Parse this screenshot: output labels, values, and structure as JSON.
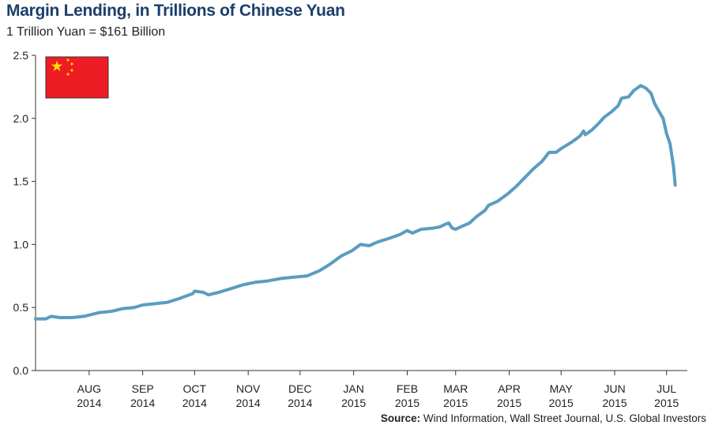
{
  "header": {
    "title": "Margin Lending, in Trillions of Chinese Yuan",
    "subtitle": "1 Trillion Yuan = $161 Billion"
  },
  "footer": {
    "source_label": "Source:",
    "source_text": "Wind Information, Wall Street Journal, U.S. Global Investors"
  },
  "colors": {
    "line": "#5b9cc0",
    "axis": "#333333",
    "flag_red": "#ee1c25",
    "flag_star": "#ffde00"
  },
  "icons": {
    "flag": "china-flag-icon"
  },
  "chart_data": {
    "type": "line",
    "title": "Margin Lending, in Trillions of Chinese Yuan",
    "xlabel": "",
    "ylabel": "",
    "ylim": [
      0,
      2.5
    ],
    "yticks": [
      "0.0",
      "0.5",
      "1.0",
      "1.5",
      "2.0",
      "2.5"
    ],
    "xlim": [
      "2014-07-01",
      "2015-07-13"
    ],
    "xticks": [
      {
        "date": "2014-08-01",
        "month": "AUG",
        "year": "2014"
      },
      {
        "date": "2014-09-01",
        "month": "SEP",
        "year": "2014"
      },
      {
        "date": "2014-10-01",
        "month": "OCT",
        "year": "2014"
      },
      {
        "date": "2014-11-01",
        "month": "NOV",
        "year": "2014"
      },
      {
        "date": "2014-12-01",
        "month": "DEC",
        "year": "2014"
      },
      {
        "date": "2015-01-01",
        "month": "JAN",
        "year": "2015"
      },
      {
        "date": "2015-02-01",
        "month": "FEB",
        "year": "2015"
      },
      {
        "date": "2015-03-01",
        "month": "MAR",
        "year": "2015"
      },
      {
        "date": "2015-04-01",
        "month": "APR",
        "year": "2015"
      },
      {
        "date": "2015-05-01",
        "month": "MAY",
        "year": "2015"
      },
      {
        "date": "2015-06-01",
        "month": "JUN",
        "year": "2015"
      },
      {
        "date": "2015-07-01",
        "month": "JUL",
        "year": "2015"
      }
    ],
    "grid": false,
    "series": [
      {
        "values": [
          [
            "2014-07-01",
            0.41
          ],
          [
            "2014-07-07",
            0.41
          ],
          [
            "2014-07-10",
            0.43
          ],
          [
            "2014-07-15",
            0.42
          ],
          [
            "2014-07-22",
            0.42
          ],
          [
            "2014-07-29",
            0.43
          ],
          [
            "2014-08-01",
            0.44
          ],
          [
            "2014-08-07",
            0.46
          ],
          [
            "2014-08-14",
            0.47
          ],
          [
            "2014-08-20",
            0.49
          ],
          [
            "2014-08-27",
            0.5
          ],
          [
            "2014-09-01",
            0.52
          ],
          [
            "2014-09-08",
            0.53
          ],
          [
            "2014-09-15",
            0.54
          ],
          [
            "2014-09-22",
            0.57
          ],
          [
            "2014-09-26",
            0.59
          ],
          [
            "2014-09-30",
            0.61
          ],
          [
            "2014-10-01",
            0.63
          ],
          [
            "2014-10-06",
            0.62
          ],
          [
            "2014-10-09",
            0.6
          ],
          [
            "2014-10-15",
            0.62
          ],
          [
            "2014-10-22",
            0.65
          ],
          [
            "2014-10-29",
            0.68
          ],
          [
            "2014-11-05",
            0.7
          ],
          [
            "2014-11-12",
            0.71
          ],
          [
            "2014-11-20",
            0.73
          ],
          [
            "2014-11-27",
            0.74
          ],
          [
            "2014-12-05",
            0.75
          ],
          [
            "2014-12-12",
            0.79
          ],
          [
            "2014-12-18",
            0.84
          ],
          [
            "2014-12-25",
            0.91
          ],
          [
            "2014-12-31",
            0.95
          ],
          [
            "2015-01-05",
            1.0
          ],
          [
            "2015-01-10",
            0.99
          ],
          [
            "2015-01-15",
            1.02
          ],
          [
            "2015-01-22",
            1.05
          ],
          [
            "2015-01-28",
            1.08
          ],
          [
            "2015-02-01",
            1.11
          ],
          [
            "2015-02-04",
            1.09
          ],
          [
            "2015-02-09",
            1.12
          ],
          [
            "2015-02-16",
            1.13
          ],
          [
            "2015-02-20",
            1.14
          ],
          [
            "2015-02-23",
            1.16
          ],
          [
            "2015-02-25",
            1.17
          ],
          [
            "2015-02-27",
            1.13
          ],
          [
            "2015-03-01",
            1.12
          ],
          [
            "2015-03-04",
            1.14
          ],
          [
            "2015-03-09",
            1.17
          ],
          [
            "2015-03-13",
            1.22
          ],
          [
            "2015-03-18",
            1.27
          ],
          [
            "2015-03-20",
            1.31
          ],
          [
            "2015-03-25",
            1.34
          ],
          [
            "2015-03-31",
            1.4
          ],
          [
            "2015-04-05",
            1.46
          ],
          [
            "2015-04-10",
            1.53
          ],
          [
            "2015-04-15",
            1.6
          ],
          [
            "2015-04-20",
            1.66
          ],
          [
            "2015-04-24",
            1.73
          ],
          [
            "2015-04-28",
            1.73
          ],
          [
            "2015-05-01",
            1.76
          ],
          [
            "2015-05-07",
            1.81
          ],
          [
            "2015-05-12",
            1.86
          ],
          [
            "2015-05-14",
            1.9
          ],
          [
            "2015-05-15",
            1.87
          ],
          [
            "2015-05-19",
            1.91
          ],
          [
            "2015-05-22",
            1.95
          ],
          [
            "2015-05-26",
            2.01
          ],
          [
            "2015-05-30",
            2.05
          ],
          [
            "2015-06-03",
            2.1
          ],
          [
            "2015-06-05",
            2.16
          ],
          [
            "2015-06-09",
            2.17
          ],
          [
            "2015-06-12",
            2.22
          ],
          [
            "2015-06-16",
            2.26
          ],
          [
            "2015-06-19",
            2.24
          ],
          [
            "2015-06-22",
            2.2
          ],
          [
            "2015-06-24",
            2.12
          ],
          [
            "2015-06-26",
            2.07
          ],
          [
            "2015-06-29",
            2.0
          ],
          [
            "2015-07-01",
            1.88
          ],
          [
            "2015-07-03",
            1.8
          ],
          [
            "2015-07-05",
            1.62
          ],
          [
            "2015-07-06",
            1.47
          ]
        ]
      }
    ]
  }
}
